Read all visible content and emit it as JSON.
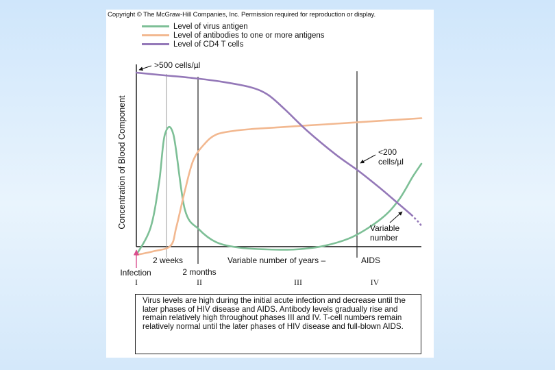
{
  "copyright": "Copyright © The McGraw-Hill Companies, Inc. Permission required for reproduction or display.",
  "chart_data": {
    "type": "line",
    "title": "",
    "xlabel": "",
    "ylabel": "Concentration of Blood Component",
    "grid": false,
    "legend_position": "top-left",
    "x_axis_labels": {
      "infection": "Infection",
      "two_weeks": "2 weeks",
      "two_months": "2 months",
      "years": "Variable number of years –",
      "aids": "AIDS"
    },
    "phases": [
      "I",
      "II",
      "III",
      "IV"
    ],
    "annotations": {
      "cd4_start": ">500 cells/µl",
      "cd4_low_line1": "<200",
      "cd4_low_line2": "cells/µl",
      "variable_line1": "Variable",
      "variable_line2": "number"
    },
    "series": [
      {
        "name": "Level of virus antigen",
        "color": "#7dbf96",
        "x": [
          0,
          0.05,
          0.08,
          0.1,
          0.13,
          0.17,
          0.22,
          0.28,
          0.36,
          0.46,
          0.56,
          0.66,
          0.76,
          0.86,
          0.92,
          0.97,
          1.0
        ],
        "y": [
          0.0,
          0.15,
          0.4,
          0.66,
          0.66,
          0.25,
          0.14,
          0.07,
          0.04,
          0.03,
          0.03,
          0.05,
          0.1,
          0.2,
          0.3,
          0.43,
          0.5
        ]
      },
      {
        "name": "Level of antibodies to one or more antigens",
        "color": "#f2b890",
        "x": [
          0,
          0.06,
          0.12,
          0.14,
          0.17,
          0.2,
          0.24,
          0.28,
          0.34,
          0.4,
          0.5,
          0.6,
          0.7,
          0.8,
          0.9,
          1.0
        ],
        "y": [
          0.0,
          0.02,
          0.05,
          0.15,
          0.35,
          0.52,
          0.61,
          0.66,
          0.68,
          0.69,
          0.7,
          0.71,
          0.72,
          0.73,
          0.74,
          0.75
        ]
      },
      {
        "name": "Level of CD4 T cells",
        "color": "#9478b8",
        "x": [
          0,
          0.1,
          0.2,
          0.3,
          0.4,
          0.46,
          0.52,
          0.6,
          0.7,
          0.78,
          0.86,
          0.92,
          0.965
        ],
        "y": [
          1.0,
          0.985,
          0.97,
          0.95,
          0.92,
          0.88,
          0.8,
          0.68,
          0.55,
          0.46,
          0.36,
          0.28,
          0.22
        ],
        "projection": {
          "x": [
            0.965,
            0.99,
            1.0
          ],
          "y": [
            0.22,
            0.18,
            0.16
          ]
        }
      }
    ]
  },
  "caption": "Virus levels are high during the initial acute infection and decrease until the later phases of HIV disease and AIDS. Antibody levels gradually rise and remain relatively high throughout phases III and IV. T-cell numbers remain relatively normal until the later phases of HIV disease and full-blown AIDS."
}
